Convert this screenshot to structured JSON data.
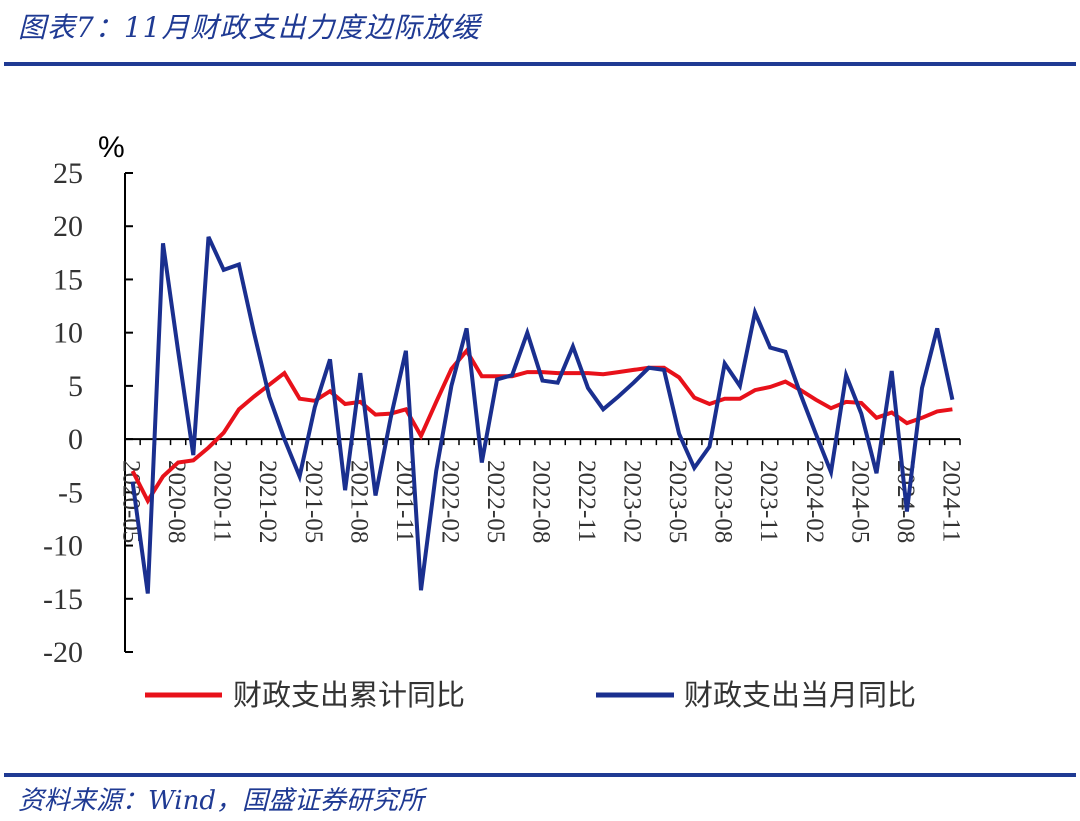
{
  "header": {
    "title": "图表7：11月财政支出力度边际放缓"
  },
  "footer": {
    "source": "资料来源：Wind，国盛证券研究所"
  },
  "colors": {
    "accent": "#1f3a93",
    "cumulative": "#e8111a",
    "monthly": "#1a2f8f"
  },
  "chart_data": {
    "type": "line",
    "title": "",
    "ylabel": "%",
    "xlabel": "",
    "ylim": [
      -20,
      25
    ],
    "yticks": [
      25,
      20,
      15,
      10,
      5,
      0,
      -5,
      -10,
      -15,
      -20
    ],
    "x": [
      "2020-05",
      "2020-06",
      "2020-07",
      "2020-08",
      "2020-09",
      "2020-10",
      "2020-11",
      "2020-12",
      "2021-01",
      "2021-02",
      "2021-03",
      "2021-04",
      "2021-05",
      "2021-06",
      "2021-07",
      "2021-08",
      "2021-09",
      "2021-10",
      "2021-11",
      "2021-12",
      "2022-01",
      "2022-02",
      "2022-03",
      "2022-04",
      "2022-05",
      "2022-06",
      "2022-07",
      "2022-08",
      "2022-09",
      "2022-10",
      "2022-11",
      "2022-12",
      "2023-01",
      "2023-02",
      "2023-03",
      "2023-04",
      "2023-05",
      "2023-06",
      "2023-07",
      "2023-08",
      "2023-09",
      "2023-10",
      "2023-11",
      "2023-12",
      "2024-01",
      "2024-02",
      "2024-03",
      "2024-04",
      "2024-05",
      "2024-06",
      "2024-07",
      "2024-08",
      "2024-09",
      "2024-10",
      "2024-11"
    ],
    "x_tick_labels": [
      "2020-05",
      "2020-08",
      "2020-11",
      "2021-02",
      "2021-05",
      "2021-08",
      "2021-11",
      "2022-02",
      "2022-05",
      "2022-08",
      "2022-11",
      "2023-02",
      "2023-05",
      "2023-08",
      "2023-11",
      "2024-02",
      "2024-05",
      "2024-08",
      "2024-11"
    ],
    "series": [
      {
        "name": "财政支出累计同比",
        "values": [
          -3.0,
          -5.8,
          -3.5,
          -2.2,
          -2.0,
          -0.8,
          0.6,
          2.8,
          4.0,
          5.1,
          6.2,
          3.8,
          3.6,
          4.5,
          3.3,
          3.5,
          2.3,
          2.4,
          2.8,
          0.3,
          3.5,
          6.6,
          8.3,
          5.9,
          5.9,
          5.9,
          6.3,
          6.3,
          6.2,
          6.2,
          6.2,
          6.1,
          6.3,
          6.5,
          6.7,
          6.7,
          5.8,
          3.9,
          3.3,
          3.8,
          3.8,
          4.6,
          4.9,
          5.4,
          4.6,
          3.7,
          2.9,
          3.5,
          3.4,
          2.0,
          2.5,
          1.5,
          2.0,
          2.6,
          2.8
        ]
      },
      {
        "name": "财政支出当月同比",
        "values": [
          -4.0,
          -14.5,
          18.4,
          8.3,
          -1.5,
          19.0,
          15.9,
          16.4,
          10.0,
          4.0,
          0.0,
          -3.5,
          3.0,
          7.5,
          -4.8,
          6.2,
          -5.3,
          2.0,
          8.3,
          -14.2,
          -3.0,
          5.0,
          10.4,
          -2.2,
          5.6,
          6.0,
          10.0,
          5.5,
          5.3,
          8.7,
          4.8,
          2.8,
          4.0,
          5.3,
          6.7,
          6.5,
          0.5,
          -2.7,
          -0.7,
          7.1,
          5.0,
          11.9,
          8.6,
          8.2,
          4.2,
          0.5,
          -3.1,
          6.0,
          2.4,
          -3.2,
          6.4,
          -6.8,
          4.8,
          10.4,
          3.7
        ]
      }
    ],
    "legend": {
      "placement": "bottom"
    },
    "grid": false
  }
}
